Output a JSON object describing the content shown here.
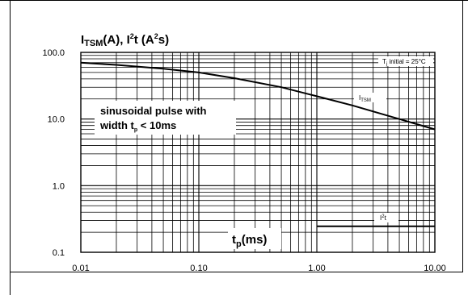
{
  "chart_data": {
    "type": "line",
    "title_main": "I",
    "title_sub": "TSM",
    "title_a": "(A), I",
    "title_sup1": "2",
    "title_b": "t (A",
    "title_sup2": "2",
    "title_c": "s)",
    "x_scale": "log",
    "y_scale": "log",
    "xlim": [
      0.01,
      10
    ],
    "ylim": [
      0.1,
      100
    ],
    "x_ticks": [
      "0.01",
      "0.10",
      "1.00",
      "10.00"
    ],
    "x_tick_values": [
      0.01,
      0.1,
      1,
      10
    ],
    "y_ticks": [
      "100.0",
      "10.0",
      "1.0",
      "0.1"
    ],
    "y_tick_values": [
      100,
      10,
      1,
      0.1
    ],
    "xlabel_main": "t",
    "xlabel_sub": "p",
    "xlabel_rest": "(ms)",
    "grid": true,
    "annotation_line1": "sinusoidal pulse with",
    "annotation_line2a": "width t",
    "annotation_line2sub": "p",
    "annotation_line2b": " < 10ms",
    "condition_a": "T",
    "condition_sub": "j",
    "condition_b": " initial = 25°C",
    "series": [
      {
        "name": "I",
        "name_sub": "TSM",
        "x": [
          0.01,
          0.02,
          0.05,
          0.1,
          0.2,
          0.5,
          1,
          2,
          5,
          10
        ],
        "y": [
          70,
          65,
          57,
          50,
          41,
          30,
          22,
          16,
          10,
          7
        ]
      },
      {
        "name": "I",
        "name_sup": "2",
        "name_rest": "t",
        "x": [
          1,
          10
        ],
        "y": [
          0.245,
          0.245
        ]
      }
    ]
  }
}
